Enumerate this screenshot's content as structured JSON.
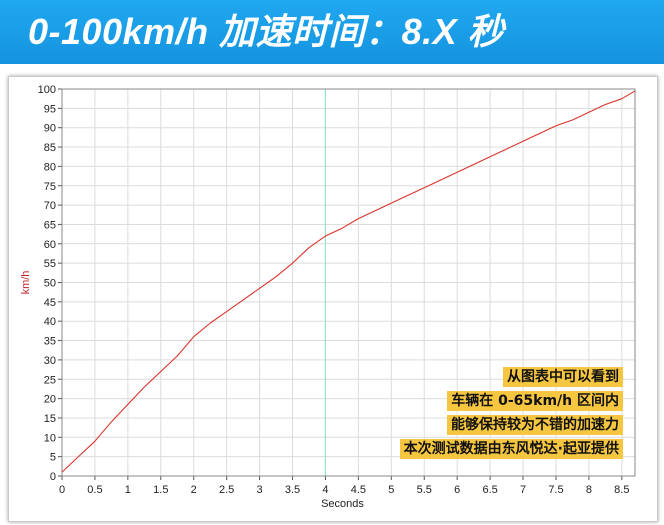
{
  "header": {
    "title": "0-100km/h 加速时间：8.X 秒"
  },
  "notes": [
    "从图表中可以看到",
    "车辆在 0-65km/h 区间内",
    "能够保持较为不错的加速力",
    "本次测试数据由东风悦达·起亚提供"
  ],
  "chart_data": {
    "type": "line",
    "xlabel": "Seconds",
    "ylabel": "km/h",
    "xlim": [
      0,
      8.7
    ],
    "ylim": [
      0,
      100
    ],
    "x_ticks": [
      "0",
      "0.5",
      "1",
      "1.5",
      "2",
      "2.5",
      "3",
      "3.5",
      "4",
      "4.5",
      "5",
      "5.5",
      "6",
      "6.5",
      "7",
      "7.5",
      "8",
      "8.5"
    ],
    "y_ticks": [
      "0",
      "5",
      "10",
      "15",
      "20",
      "25",
      "30",
      "35",
      "40",
      "45",
      "50",
      "55",
      "60",
      "65",
      "70",
      "75",
      "80",
      "85",
      "90",
      "95",
      "100"
    ],
    "grid": true,
    "marker_line_x": 4,
    "colors": {
      "line": "#d9342b",
      "marker": "#8fe3cf",
      "grid": "#dcdcdc",
      "header": "#1a9be6",
      "note_bg": "#f6c640"
    },
    "series": [
      {
        "x": [
          0,
          0.25,
          0.5,
          0.75,
          1,
          1.25,
          1.5,
          1.75,
          2,
          2.25,
          2.5,
          2.75,
          3,
          3.25,
          3.5,
          3.75,
          4,
          4.25,
          4.5,
          4.75,
          5,
          5.25,
          5.5,
          5.75,
          6,
          6.25,
          6.5,
          6.75,
          7,
          7.25,
          7.5,
          7.75,
          8,
          8.25,
          8.5,
          8.7
        ],
        "values": [
          1,
          5,
          9,
          14,
          18.5,
          23,
          27,
          31,
          36,
          39.5,
          42.5,
          45.5,
          48.5,
          51.5,
          55,
          59,
          62,
          64,
          66.5,
          68.5,
          70.5,
          72.5,
          74.5,
          76.5,
          78.5,
          80.5,
          82.5,
          84.5,
          86.5,
          88.5,
          90.5,
          92,
          94,
          96,
          97.5,
          99.5
        ]
      }
    ]
  }
}
